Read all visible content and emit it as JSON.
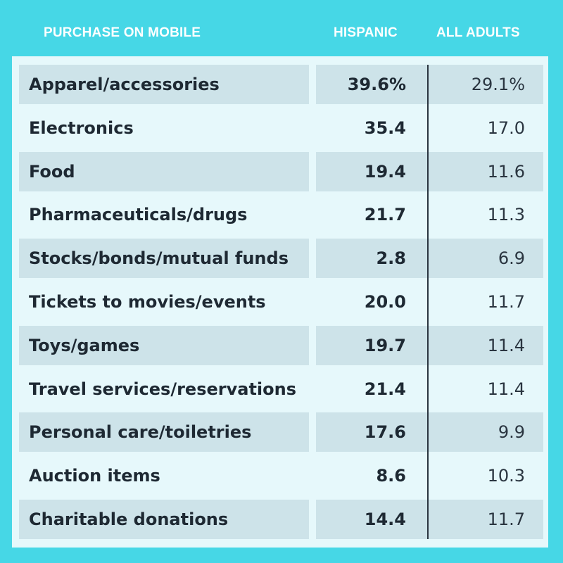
{
  "header": {
    "label": "PURCHASE ON MOBILE",
    "hispanic": "HISPANIC",
    "all_adults": "ALL ADULTS"
  },
  "chart_data": {
    "type": "table",
    "columns": [
      "PURCHASE ON MOBILE",
      "HISPANIC",
      "ALL ADULTS"
    ],
    "rows": [
      {
        "label": "Apparel/accessories",
        "hispanic": "39.6%",
        "all_adults": "29.1%"
      },
      {
        "label": "Electronics",
        "hispanic": "35.4",
        "all_adults": "17.0"
      },
      {
        "label": "Food",
        "hispanic": "19.4",
        "all_adults": "11.6"
      },
      {
        "label": "Pharmaceuticals/drugs",
        "hispanic": "21.7",
        "all_adults": "11.3"
      },
      {
        "label": "Stocks/bonds/mutual funds",
        "hispanic": "2.8",
        "all_adults": "6.9"
      },
      {
        "label": "Tickets to movies/events",
        "hispanic": "20.0",
        "all_adults": "11.7"
      },
      {
        "label": "Toys/games",
        "hispanic": "19.7",
        "all_adults": "11.4"
      },
      {
        "label": "Travel services/reservations",
        "hispanic": "21.4",
        "all_adults": "11.4"
      },
      {
        "label": "Personal care/toiletries",
        "hispanic": "17.6",
        "all_adults": "9.9"
      },
      {
        "label": "Auction items",
        "hispanic": "8.6",
        "all_adults": "10.3"
      },
      {
        "label": "Charitable donations",
        "hispanic": "14.4",
        "all_adults": "11.7"
      }
    ]
  },
  "colors": {
    "background": "#46d7e6",
    "table_bg": "#e6f8fb",
    "row_shade": "#cde3e9",
    "text": "#1e2933"
  }
}
